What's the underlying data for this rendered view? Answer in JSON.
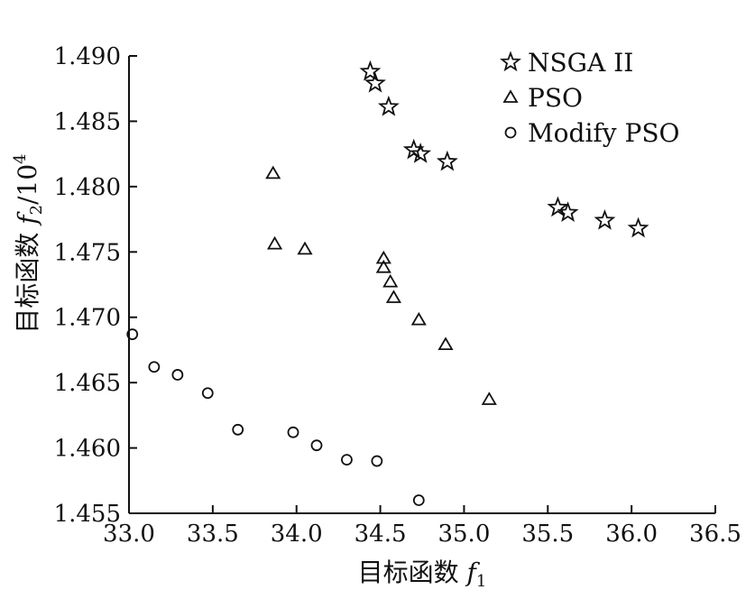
{
  "chart_data": {
    "type": "scatter",
    "xlabel": "目标函数 f1",
    "ylabel": "目标函数 f2/10^4",
    "xlabel_parts": {
      "text": "目标函数 ",
      "var": "f",
      "sub": "1"
    },
    "ylabel_parts": {
      "text": "目标函数 ",
      "var": "f",
      "sub": "2",
      "suffix": "/10",
      "sup": "4"
    },
    "xlim": [
      33.0,
      36.5
    ],
    "ylim": [
      1.455,
      1.49
    ],
    "xticks": [
      "33.0",
      "33.5",
      "34.0",
      "34.5",
      "35.0",
      "35.5",
      "36.0",
      "36.5"
    ],
    "yticks": [
      "1.455",
      "1.460",
      "1.465",
      "1.470",
      "1.475",
      "1.480",
      "1.485",
      "1.490"
    ],
    "grid": false,
    "legend_position": "top-right",
    "series": [
      {
        "name": "NSGA II",
        "marker": "star",
        "points": [
          [
            34.44,
            1.4888
          ],
          [
            34.47,
            1.4879
          ],
          [
            34.55,
            1.4861
          ],
          [
            34.7,
            1.4828
          ],
          [
            34.74,
            1.4825
          ],
          [
            34.9,
            1.4819
          ],
          [
            35.56,
            1.4784
          ],
          [
            35.62,
            1.478
          ],
          [
            35.84,
            1.4774
          ],
          [
            36.04,
            1.4768
          ]
        ]
      },
      {
        "name": "PSO",
        "marker": "triangle",
        "points": [
          [
            33.86,
            1.481
          ],
          [
            33.87,
            1.4756
          ],
          [
            34.05,
            1.4752
          ],
          [
            34.52,
            1.4745
          ],
          [
            34.52,
            1.4738
          ],
          [
            34.56,
            1.4727
          ],
          [
            34.58,
            1.4715
          ],
          [
            34.73,
            1.4698
          ],
          [
            34.89,
            1.4679
          ],
          [
            35.15,
            1.4637
          ]
        ]
      },
      {
        "name": "Modify PSO",
        "marker": "circle",
        "points": [
          [
            33.02,
            1.4687
          ],
          [
            33.15,
            1.4662
          ],
          [
            33.29,
            1.4656
          ],
          [
            33.47,
            1.4642
          ],
          [
            33.65,
            1.4614
          ],
          [
            33.98,
            1.4612
          ],
          [
            34.12,
            1.4602
          ],
          [
            34.3,
            1.4591
          ],
          [
            34.48,
            1.459
          ],
          [
            34.73,
            1.456
          ]
        ]
      }
    ]
  }
}
